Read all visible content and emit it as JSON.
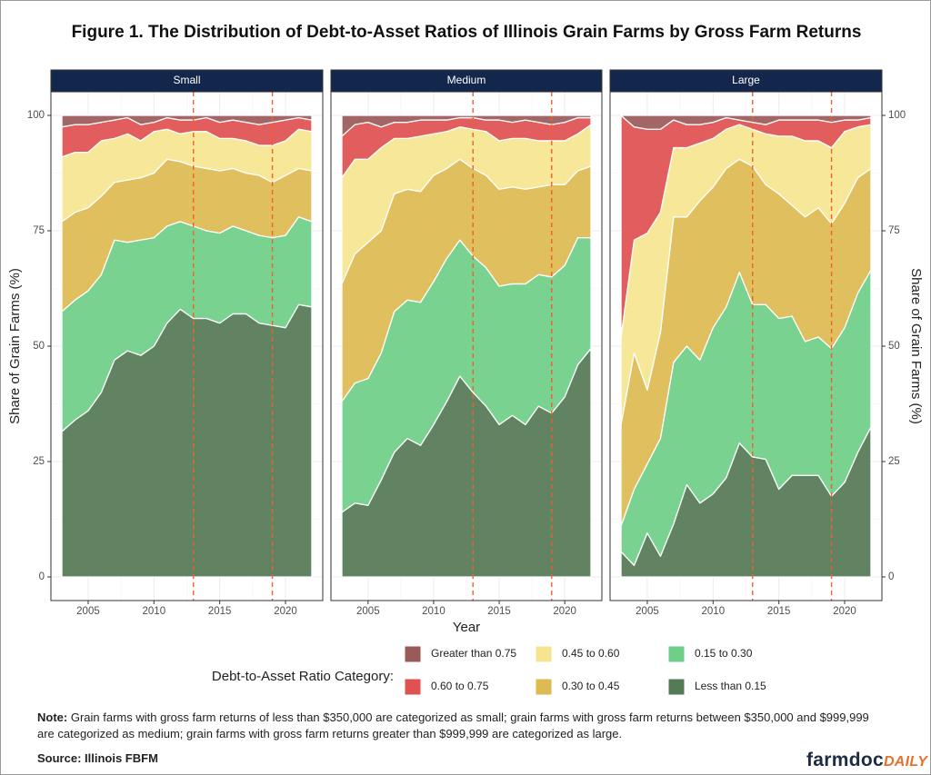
{
  "chart_data": {
    "type": "area",
    "title": "Figure 1. The Distribution of Debt-to-Asset Ratios of Illinois Grain Farms by Gross Farm Returns",
    "x_label": "Year",
    "y_label": "Share of Grain Farms (%)",
    "y2_label": "Share of Grain Farms (%)",
    "legend_title": "Debt-to-Asset Ratio Category:",
    "x": [
      2003,
      2004,
      2005,
      2006,
      2007,
      2008,
      2009,
      2010,
      2011,
      2012,
      2013,
      2014,
      2015,
      2016,
      2017,
      2018,
      2019,
      2020,
      2021,
      2022
    ],
    "xlim": [
      2003,
      2022
    ],
    "xticks": [
      2005,
      2010,
      2015,
      2020
    ],
    "ylim": [
      0,
      100
    ],
    "yticks": [
      0,
      25,
      50,
      75,
      100
    ],
    "y2lim": [
      0,
      100
    ],
    "y2ticks": [
      0,
      25,
      50,
      75,
      100
    ],
    "vlines": [
      2013,
      2019
    ],
    "vline_color": "#f0602a",
    "grid": true,
    "series": [
      {
        "name": "Less than 0.15",
        "color": "#557a56"
      },
      {
        "name": "0.15 to 0.30",
        "color": "#6fcf88"
      },
      {
        "name": "0.30 to 0.45",
        "color": "#deba53"
      },
      {
        "name": "0.45 to 0.60",
        "color": "#f6e590"
      },
      {
        "name": "0.60 to 0.75",
        "color": "#e05252"
      },
      {
        "name": "Greater than 0.75",
        "color": "#9b5a5a"
      }
    ],
    "panels": [
      {
        "title": "Small",
        "values": [
          [
            31.5,
            34,
            36,
            40,
            47,
            49,
            48,
            50,
            55,
            58,
            56,
            56,
            55,
            57,
            57,
            55,
            54.5,
            54,
            59,
            58.5
          ],
          [
            26,
            26,
            26,
            25.5,
            26,
            23.5,
            25,
            23.5,
            21,
            19,
            20,
            19,
            19.5,
            19,
            18,
            19,
            19,
            20,
            19,
            18.5
          ],
          [
            19.5,
            19,
            18,
            17,
            12.5,
            13.5,
            13.5,
            14,
            14.5,
            13,
            13,
            13.5,
            13.5,
            12.5,
            12.5,
            13,
            12,
            13,
            10.5,
            11
          ],
          [
            14,
            13,
            12,
            12,
            9.5,
            10,
            8,
            9,
            6.5,
            6,
            7.5,
            8,
            7,
            6.5,
            7,
            6.5,
            8,
            7.5,
            8.5,
            8.5
          ],
          [
            6.5,
            6,
            6,
            4,
            4,
            3.5,
            3.5,
            2,
            2.5,
            3,
            2.5,
            3,
            3.5,
            4,
            4,
            4.5,
            5,
            4.5,
            2.5,
            2.5
          ],
          [
            2.5,
            2,
            2,
            1.5,
            1,
            0.5,
            2,
            1.5,
            0.5,
            1,
            1,
            0.5,
            1.5,
            1,
            1.5,
            2,
            1.5,
            1,
            0.5,
            1
          ]
        ]
      },
      {
        "title": "Medium",
        "values": [
          [
            14,
            16,
            15.5,
            21,
            27,
            30,
            28.5,
            33,
            38,
            43.5,
            40,
            37,
            33,
            35,
            33,
            37,
            35.5,
            39,
            46,
            49.5
          ],
          [
            24,
            26,
            27.5,
            27.5,
            30.5,
            30,
            31,
            31,
            31,
            29.5,
            29.5,
            30,
            30,
            28.5,
            30.5,
            28.5,
            29.5,
            28.5,
            27.5,
            24
          ],
          [
            25.5,
            28,
            29.5,
            26.5,
            25.5,
            24,
            24,
            23,
            19.5,
            17.5,
            19,
            20,
            21,
            21,
            20.5,
            19,
            20,
            17.5,
            14.5,
            15.5
          ],
          [
            23,
            20.5,
            18,
            18,
            12,
            11,
            12,
            9,
            8,
            7,
            8.5,
            9.5,
            10.5,
            10.5,
            11,
            10,
            9.5,
            9.5,
            8,
            9
          ],
          [
            9,
            7.5,
            8,
            4.5,
            3.5,
            3.5,
            3.5,
            3,
            2.5,
            2,
            2.5,
            2.5,
            4.5,
            3.5,
            4,
            4,
            3.5,
            4,
            3.5,
            1.5
          ],
          [
            4.5,
            2,
            1.5,
            2.5,
            1.5,
            1.5,
            1,
            1,
            1,
            0.5,
            0.5,
            1,
            1,
            1.5,
            1,
            1.5,
            2,
            1.5,
            0.5,
            0.5
          ]
        ]
      },
      {
        "title": "Large",
        "values": [
          [
            5.5,
            2.5,
            9.5,
            4.5,
            11.5,
            20,
            16,
            18,
            21.5,
            29,
            26,
            25.5,
            19,
            22,
            22,
            22,
            17.5,
            20.5,
            27,
            32.5
          ],
          [
            5.5,
            16.5,
            15,
            25.5,
            35,
            30,
            31,
            36,
            37,
            37,
            33,
            33.5,
            37,
            34.5,
            29,
            30,
            32,
            33.5,
            34.5,
            34
          ],
          [
            22,
            29.5,
            16,
            23,
            31.5,
            28,
            34.5,
            30.5,
            30,
            24.5,
            30,
            26,
            27,
            24,
            27,
            28,
            27,
            27,
            25,
            22
          ],
          [
            19,
            24.5,
            34,
            26,
            15,
            15,
            12.5,
            10.5,
            8.5,
            7.5,
            8,
            11,
            12.5,
            15,
            16.5,
            14.5,
            16.5,
            15.5,
            11,
            9.5
          ],
          [
            48,
            24.5,
            22.5,
            18,
            6,
            5,
            4,
            3.5,
            2.5,
            1,
            1.5,
            2,
            3.5,
            3.5,
            4.5,
            4.5,
            5.5,
            2.5,
            1.5,
            1.5
          ],
          [
            0,
            2.5,
            3,
            3,
            1,
            2,
            2,
            1.5,
            0.5,
            1,
            1.5,
            2,
            1,
            1,
            1,
            1,
            1.5,
            1,
            1,
            0.5
          ]
        ]
      }
    ]
  },
  "note": {
    "label": "Note:",
    "text": "Grain farms with gross farm returns of less than $350,000 are categorized as small; grain farms with gross farm returns between $350,000 and $999,999 are categorized as medium; grain farms with gross farm returns greater than $999,999 are categorized as large."
  },
  "source": "Source: Illinois FBFM",
  "logo": {
    "name": "farmdoc",
    "suffix": "DAILY"
  }
}
